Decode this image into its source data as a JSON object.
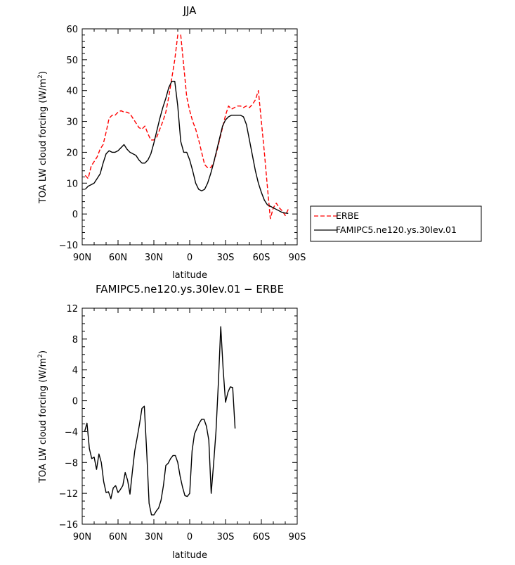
{
  "chart_data": [
    {
      "type": "line",
      "title": "JJA",
      "xlabel": "latitude",
      "ylabel": "TOA LW cloud forcing (W/m²)",
      "ylabel_main": "TOA LW cloud forcing (W/m",
      "ylabel_sup": "2",
      "ylabel_tail": ")",
      "xlim": [
        90,
        -90
      ],
      "ylim": [
        -10,
        60
      ],
      "xticks": [
        90,
        60,
        30,
        0,
        -30,
        -60,
        -90
      ],
      "xtick_labels": [
        "90N",
        "60N",
        "30N",
        "0",
        "30S",
        "60S",
        "90S"
      ],
      "yticks": [
        -10,
        0,
        10,
        20,
        30,
        40,
        50,
        60
      ],
      "ytick_labels": [
        "−10",
        "0",
        "10",
        "20",
        "30",
        "40",
        "50",
        "60"
      ],
      "legend": {
        "position": "right"
      },
      "series": [
        {
          "name": "ERBE",
          "color": "#ff0000",
          "dash": "dashed",
          "points": [
            [
              87.5,
              12.5
            ],
            [
              85,
              11.5
            ],
            [
              82.5,
              15.5
            ],
            [
              80,
              17
            ],
            [
              77.5,
              18.5
            ],
            [
              75,
              21
            ],
            [
              72.5,
              22.5
            ],
            [
              70,
              26.5
            ],
            [
              67.5,
              31
            ],
            [
              65,
              32
            ],
            [
              62.5,
              32
            ],
            [
              60,
              33
            ],
            [
              57.5,
              33.5
            ],
            [
              55,
              33
            ],
            [
              52.5,
              33
            ],
            [
              50,
              32.5
            ],
            [
              47.5,
              31
            ],
            [
              45,
              29.5
            ],
            [
              42.5,
              28
            ],
            [
              40,
              27.5
            ],
            [
              37.5,
              28.5
            ],
            [
              35,
              26
            ],
            [
              32.5,
              24
            ],
            [
              30,
              24
            ],
            [
              27.5,
              25
            ],
            [
              25,
              27.5
            ],
            [
              22.5,
              30
            ],
            [
              20,
              33
            ],
            [
              17.5,
              38
            ],
            [
              15,
              44
            ],
            [
              12.5,
              50
            ],
            [
              10,
              58
            ],
            [
              7.5,
              58
            ],
            [
              5,
              48
            ],
            [
              2.5,
              38
            ],
            [
              0,
              33.5
            ],
            [
              -2.5,
              30
            ],
            [
              -5,
              27.5
            ],
            [
              -7.5,
              24
            ],
            [
              -10,
              20
            ],
            [
              -12.5,
              16
            ],
            [
              -15,
              15
            ],
            [
              -17.5,
              15
            ],
            [
              -20,
              16.5
            ],
            [
              -22.5,
              20
            ],
            [
              -25,
              24
            ],
            [
              -27.5,
              28
            ],
            [
              -30,
              32
            ],
            [
              -32.5,
              35
            ],
            [
              -35,
              34
            ],
            [
              -37.5,
              34.5
            ],
            [
              -40,
              35
            ],
            [
              -42.5,
              35
            ],
            [
              -45,
              34.5
            ],
            [
              -47.5,
              35
            ],
            [
              -50,
              34.5
            ],
            [
              -52.5,
              35.5
            ],
            [
              -55,
              37
            ],
            [
              -57.5,
              40
            ],
            [
              -60,
              30
            ],
            [
              -62.5,
              20
            ],
            [
              -65,
              9
            ],
            [
              -67.5,
              -1.5
            ],
            [
              -70,
              2
            ],
            [
              -72.5,
              3.5
            ],
            [
              -75,
              2
            ],
            [
              -77.5,
              1
            ],
            [
              -80,
              -0.5
            ],
            [
              -82.5,
              1.5
            ]
          ]
        },
        {
          "name": "FAMIPC5.ne120.ys.30lev.01",
          "color": "#000000",
          "dash": "solid",
          "points": [
            [
              87.5,
              8
            ],
            [
              85,
              9
            ],
            [
              82.5,
              9.5
            ],
            [
              80,
              10
            ],
            [
              77.5,
              11.5
            ],
            [
              75,
              13
            ],
            [
              72.5,
              16.5
            ],
            [
              70,
              19.5
            ],
            [
              67.5,
              20.5
            ],
            [
              65,
              20
            ],
            [
              62.5,
              20
            ],
            [
              60,
              20.5
            ],
            [
              57.5,
              21.5
            ],
            [
              55,
              22.5
            ],
            [
              52.5,
              21
            ],
            [
              50,
              20
            ],
            [
              47.5,
              19.5
            ],
            [
              45,
              19
            ],
            [
              42.5,
              17.5
            ],
            [
              40,
              16.5
            ],
            [
              37.5,
              16.5
            ],
            [
              35,
              17.5
            ],
            [
              32.5,
              19.5
            ],
            [
              30,
              23
            ],
            [
              27.5,
              27
            ],
            [
              25,
              31
            ],
            [
              22.5,
              34.5
            ],
            [
              20,
              37.5
            ],
            [
              17.5,
              41
            ],
            [
              15,
              43
            ],
            [
              12.5,
              43
            ],
            [
              10,
              35
            ],
            [
              7.5,
              23.5
            ],
            [
              5,
              20
            ],
            [
              2.5,
              20
            ],
            [
              0,
              17.5
            ],
            [
              -2.5,
              14
            ],
            [
              -5,
              10
            ],
            [
              -7.5,
              8
            ],
            [
              -10,
              7.5
            ],
            [
              -12.5,
              8
            ],
            [
              -15,
              10
            ],
            [
              -17.5,
              13
            ],
            [
              -20,
              16.5
            ],
            [
              -22.5,
              20.5
            ],
            [
              -25,
              24.5
            ],
            [
              -27.5,
              28.5
            ],
            [
              -30,
              30.5
            ],
            [
              -32.5,
              31.5
            ],
            [
              -35,
              32
            ],
            [
              -37.5,
              32
            ],
            [
              -40,
              32
            ],
            [
              -42.5,
              32
            ],
            [
              -45,
              31.5
            ],
            [
              -47.5,
              29
            ],
            [
              -50,
              24
            ],
            [
              -52.5,
              19
            ],
            [
              -55,
              14
            ],
            [
              -57.5,
              10
            ],
            [
              -60,
              7
            ],
            [
              -62.5,
              4.5
            ],
            [
              -65,
              3
            ],
            [
              -67.5,
              2.5
            ],
            [
              -70,
              2
            ],
            [
              -72.5,
              1.5
            ],
            [
              -75,
              1
            ],
            [
              -77.5,
              0.5
            ],
            [
              -80,
              0.3
            ],
            [
              -82.5,
              0.2
            ]
          ]
        }
      ]
    },
    {
      "type": "line",
      "title": "FAMIPC5.ne120.ys.30lev.01 − ERBE",
      "xlabel": "latitude",
      "ylabel": "TOA LW cloud forcing (W/m²)",
      "ylabel_main": "TOA LW cloud forcing (W/m",
      "ylabel_sup": "2",
      "ylabel_tail": ")",
      "xlim": [
        90,
        -90
      ],
      "ylim": [
        -16,
        12
      ],
      "xticks": [
        90,
        60,
        30,
        0,
        -30,
        -60,
        -90
      ],
      "xtick_labels": [
        "90N",
        "60N",
        "30N",
        "0",
        "30S",
        "60S",
        "90S"
      ],
      "yticks": [
        -16,
        -12,
        -8,
        -4,
        0,
        4,
        8,
        12
      ],
      "ytick_labels": [
        "−16",
        "−12",
        "−8",
        "−4",
        "0",
        "4",
        "8",
        "12"
      ],
      "series": [
        {
          "color": "#000000",
          "dash": "solid",
          "points": [
            [
              88,
              -4
            ],
            [
              86,
              -2.9
            ],
            [
              84,
              -6.2
            ],
            [
              82,
              -7.5
            ],
            [
              80,
              -7.3
            ],
            [
              78,
              -8.9
            ],
            [
              76,
              -6.9
            ],
            [
              74,
              -8
            ],
            [
              72,
              -10.5
            ],
            [
              70,
              -11.9
            ],
            [
              68,
              -11.8
            ],
            [
              66,
              -12.7
            ],
            [
              64,
              -11.3
            ],
            [
              62,
              -11
            ],
            [
              60,
              -11.9
            ],
            [
              58,
              -11.5
            ],
            [
              56,
              -11
            ],
            [
              54,
              -9.3
            ],
            [
              52,
              -10.3
            ],
            [
              50,
              -12.1
            ],
            [
              48,
              -9.2
            ],
            [
              46,
              -6.5
            ],
            [
              44,
              -4.8
            ],
            [
              42,
              -3
            ],
            [
              40,
              -1
            ],
            [
              38,
              -0.7
            ],
            [
              36,
              -6.6
            ],
            [
              34,
              -13.3
            ],
            [
              32,
              -14.8
            ],
            [
              30,
              -14.8
            ],
            [
              28,
              -14.3
            ],
            [
              26,
              -13.9
            ],
            [
              24,
              -12.9
            ],
            [
              22,
              -11
            ],
            [
              20,
              -8.4
            ],
            [
              18,
              -8.1
            ],
            [
              16,
              -7.5
            ],
            [
              14,
              -7.1
            ],
            [
              12,
              -7.1
            ],
            [
              10,
              -8
            ],
            [
              8,
              -9.8
            ],
            [
              6,
              -11.2
            ],
            [
              4,
              -12.3
            ],
            [
              2,
              -12.4
            ],
            [
              0,
              -12
            ],
            [
              -2,
              -6.5
            ],
            [
              -4,
              -4.3
            ],
            [
              -6,
              -3.6
            ],
            [
              -8,
              -2.9
            ],
            [
              -10,
              -2.4
            ],
            [
              -12,
              -2.4
            ],
            [
              -14,
              -3.3
            ],
            [
              -16,
              -5.1
            ],
            [
              -18,
              -12
            ],
            [
              -20,
              -8.2
            ],
            [
              -22,
              -4
            ],
            [
              -24,
              2.3
            ],
            [
              -26,
              9.6
            ],
            [
              -28,
              4.1
            ],
            [
              -30,
              -0.2
            ],
            [
              -32,
              1.1
            ],
            [
              -34,
              1.8
            ],
            [
              -36,
              1.7
            ],
            [
              -38,
              -3.6
            ]
          ]
        }
      ]
    }
  ]
}
